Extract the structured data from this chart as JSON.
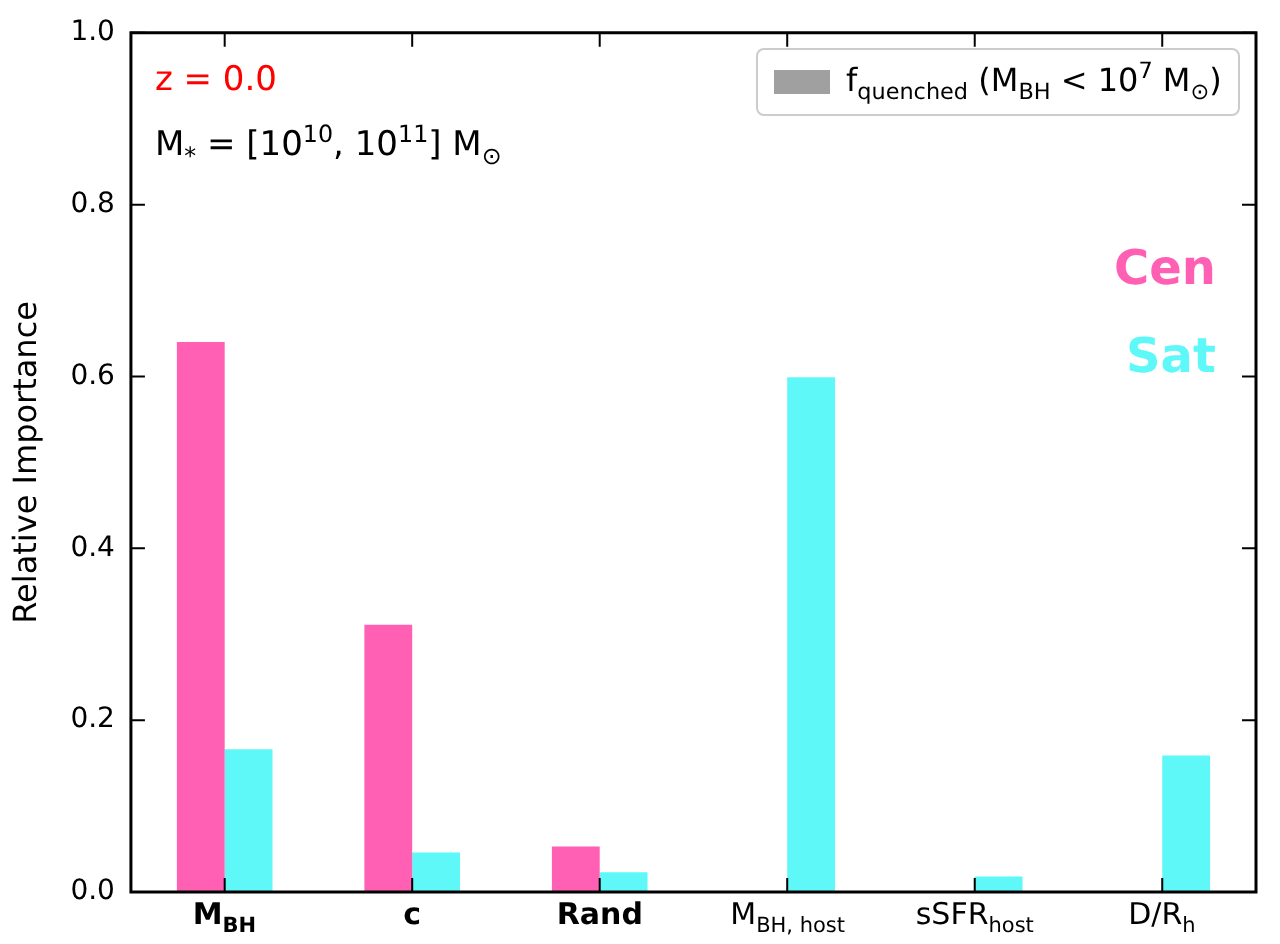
{
  "chart_data": {
    "type": "bar",
    "ylabel": "Relative Importance",
    "legend_title": "f$_{quenched}$ (M$_{BH}$ < 10$^{7}$ M$_{⊙}$)",
    "legend": "top right",
    "categories": [
      "M$_{BH}$",
      "c",
      "Rand",
      "M$_{BH, host}$",
      "sSFR$_{host}$",
      "D/R$_{h}$"
    ],
    "series": [
      {
        "name": "Cen",
        "color": "#ff60b4",
        "values": [
          0.64,
          0.311,
          0.053,
          0,
          0,
          0
        ]
      },
      {
        "name": "Sat",
        "color": "#5ff8f8",
        "values": [
          0.166,
          0.046,
          0.023,
          0.599,
          0.018,
          0.159
        ]
      }
    ],
    "ylim": [
      0,
      1
    ],
    "yticks": [
      {
        "value": 0,
        "label": "0.0"
      },
      {
        "value": 0.2,
        "label": "0.2"
      },
      {
        "value": 0.4,
        "label": "0.4"
      },
      {
        "value": 0.6,
        "label": "0.6"
      },
      {
        "value": 0.8,
        "label": "0.8"
      },
      {
        "value": 1,
        "label": "1.0"
      }
    ],
    "annotations": [
      "z = 0.0",
      "M$_{*}$ = [10$^{10}$, 10$^{11}$] M$_{⊙}$"
    ]
  }
}
